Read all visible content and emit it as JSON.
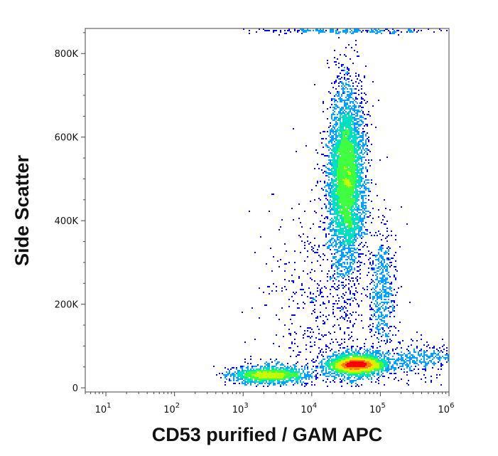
{
  "chart_data": {
    "type": "scatter",
    "title": "",
    "xlabel": "CD53 purified / GAM APC",
    "ylabel": "Side Scatter",
    "x_scale": "log",
    "xlim": [
      5,
      1000000
    ],
    "ylim": [
      -10000,
      860000
    ],
    "x_ticks": [
      {
        "base": "10",
        "exp": "1",
        "value": 10
      },
      {
        "base": "10",
        "exp": "2",
        "value": 100
      },
      {
        "base": "10",
        "exp": "3",
        "value": 1000
      },
      {
        "base": "10",
        "exp": "4",
        "value": 10000
      },
      {
        "base": "10",
        "exp": "5",
        "value": 100000
      },
      {
        "base": "10",
        "exp": "6",
        "value": 1000000
      }
    ],
    "y_ticks": [
      {
        "label": "0",
        "value": 0
      },
      {
        "label": "200K",
        "value": 200000
      },
      {
        "label": "400K",
        "value": 400000
      },
      {
        "label": "600K",
        "value": 600000
      },
      {
        "label": "800K",
        "value": 800000
      }
    ],
    "grid": false,
    "legend": "none",
    "colormap": [
      "#0000ff",
      "#00a0ff",
      "#00e0c0",
      "#40ff40",
      "#c0ff00",
      "#ffe000",
      "#ff8000",
      "#ff0000"
    ],
    "populations": [
      {
        "x_center": 2500,
        "x_spread_decades": 0.28,
        "y_center": 30000,
        "y_spread": 14000,
        "density": "high",
        "count": 1600
      },
      {
        "x_center": 45000,
        "x_spread_decades": 0.2,
        "y_center": 55000,
        "y_spread": 16000,
        "density": "very-high",
        "count": 3200
      },
      {
        "x_center": 32000,
        "x_spread_decades": 0.13,
        "y_center": 500000,
        "y_spread": 105000,
        "density": "high",
        "count": 5200
      },
      {
        "x_center": 110000,
        "x_spread_decades": 0.1,
        "y_center": 230000,
        "y_spread": 70000,
        "density": "low",
        "count": 550
      },
      {
        "x_center": 15000,
        "x_spread_decades": 0.4,
        "y_center": 200000,
        "y_spread": 140000,
        "density": "sparse",
        "count": 700
      },
      {
        "x_center": 300000,
        "x_spread_decades": 0.35,
        "y_center": 70000,
        "y_spread": 25000,
        "density": "low",
        "count": 450
      },
      {
        "x_center": 35000,
        "x_spread_decades": 0.6,
        "y_center": 855000,
        "y_spread": 4000,
        "density": "low",
        "count": 300
      }
    ]
  }
}
